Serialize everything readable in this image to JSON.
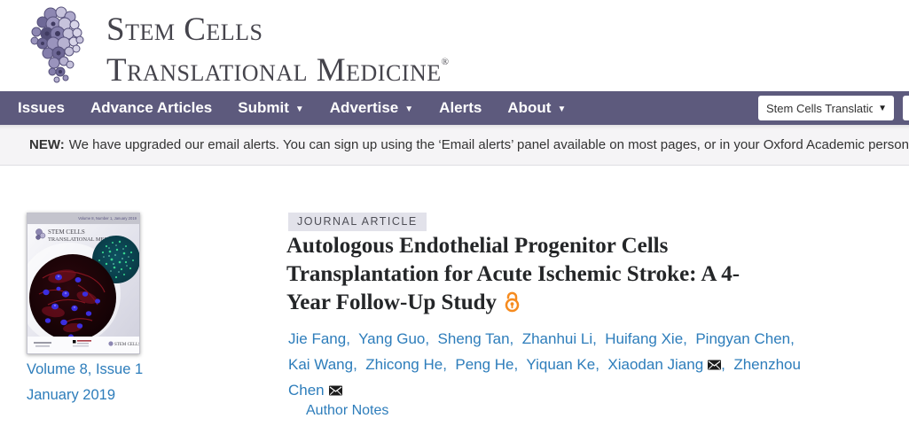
{
  "colors": {
    "nav_bg": "#5d5a7d",
    "link_blue": "#2d7dbb",
    "open_access_orange": "#f68b1f",
    "badge_bg": "#e2e2ea",
    "banner_bg": "#f5f4f6"
  },
  "header": {
    "logo_line1": "Stem Cells",
    "logo_line2": "Translational Medicine",
    "registered_mark": "®"
  },
  "nav": {
    "items": [
      {
        "label": "Issues",
        "dropdown": false
      },
      {
        "label": "Advance Articles",
        "dropdown": false
      },
      {
        "label": "Submit",
        "dropdown": true
      },
      {
        "label": "Advertise",
        "dropdown": true
      },
      {
        "label": "Alerts",
        "dropdown": false
      },
      {
        "label": "About",
        "dropdown": true
      }
    ],
    "journal_select": {
      "value": "Stem Cells Translational M",
      "arrow": "▼"
    }
  },
  "banner": {
    "label": "NEW:",
    "message": "We have upgraded our email alerts. You can sign up using the ‘Email alerts’ panel available on most pages, or in your Oxford Academic personal account, w"
  },
  "issue": {
    "cover_top_text": "Volume 8, Number 1, January 2019",
    "cover_masthead1": "Stem Cells",
    "cover_masthead2": "Translational Medicine",
    "volume_label": "Volume 8, Issue 1",
    "date_label": "January 2019"
  },
  "article": {
    "badge": "JOURNAL ARTICLE",
    "title": "Autologous Endothelial Progenitor Cells Transplantation for Acute Ischemic Stroke: A 4-Year Follow-Up Study",
    "authors": [
      {
        "name": "Jie Fang",
        "email": false
      },
      {
        "name": "Yang Guo",
        "email": false
      },
      {
        "name": "Sheng Tan",
        "email": false
      },
      {
        "name": "Zhanhui Li",
        "email": false
      },
      {
        "name": "Huifang Xie",
        "email": false
      },
      {
        "name": "Pingyan Chen",
        "email": false
      },
      {
        "name": "Kai Wang",
        "email": false
      },
      {
        "name": "Zhicong He",
        "email": false
      },
      {
        "name": "Peng He",
        "email": false
      },
      {
        "name": "Yiquan Ke",
        "email": false
      },
      {
        "name": "Xiaodan Jiang",
        "email": true
      },
      {
        "name": "Zhenzhou Chen",
        "email": true
      }
    ],
    "author_notes_label": "Author Notes"
  },
  "icons": {
    "dropdown_glyph": "▼",
    "email": "envelope-icon",
    "open_access": "open-lock-icon"
  }
}
